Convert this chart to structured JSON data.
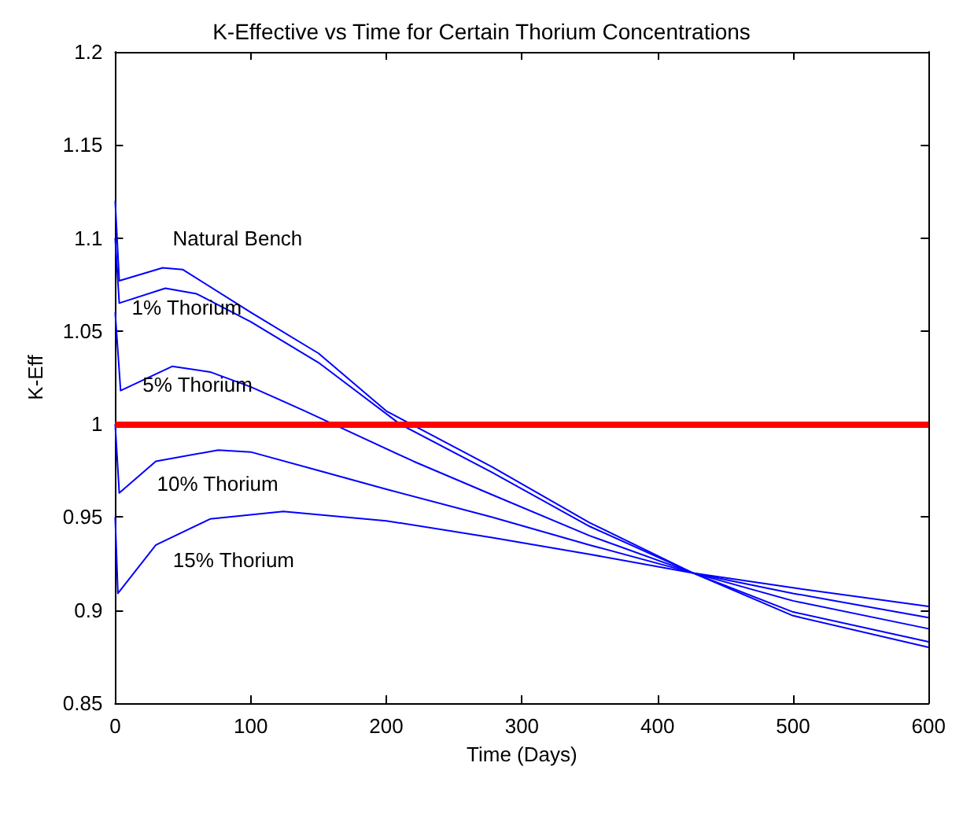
{
  "chart_data": {
    "type": "line",
    "title": "K-Effective vs Time for Certain Thorium Concentrations",
    "xlabel": "Time (Days)",
    "ylabel": "K-Eff",
    "xlim": [
      0,
      600
    ],
    "xticks": [
      0,
      100,
      200,
      300,
      400,
      500,
      600
    ],
    "ylim": [
      0.85,
      1.2
    ],
    "yticks": [
      0.85,
      0.9,
      0.95,
      1,
      1.05,
      1.1,
      1.15,
      1.2
    ],
    "grid": false,
    "legend": false,
    "marker": "none",
    "line_style": "solid",
    "series": [
      {
        "name": "Natural Bench",
        "color": "#0000ff",
        "x": [
          0,
          3,
          35,
          50,
          100,
          150,
          200,
          278,
          350,
          426,
          500,
          600
        ],
        "values": [
          1.12,
          1.077,
          1.084,
          1.083,
          1.06,
          1.038,
          1.007,
          0.977,
          0.947,
          0.92,
          0.897,
          0.88
        ]
      },
      {
        "name": "1% Thorium",
        "color": "#0000ff",
        "x": [
          0,
          3,
          37,
          60,
          100,
          150,
          210,
          278,
          350,
          426,
          500,
          600
        ],
        "values": [
          1.1,
          1.065,
          1.073,
          1.07,
          1.055,
          1.033,
          1.0,
          0.974,
          0.945,
          0.92,
          0.899,
          0.883
        ]
      },
      {
        "name": "5% Thorium",
        "color": "#0000ff",
        "x": [
          0,
          4,
          42,
          70,
          100,
          140,
          220,
          278,
          350,
          426,
          500,
          600
        ],
        "values": [
          1.06,
          1.018,
          1.031,
          1.028,
          1.02,
          1.007,
          0.98,
          0.962,
          0.94,
          0.92,
          0.905,
          0.89
        ]
      },
      {
        "name": "10% Thorium",
        "color": "#0000ff",
        "x": [
          0,
          3,
          30,
          76,
          100,
          150,
          200,
          278,
          350,
          426,
          500,
          600
        ],
        "values": [
          1.0,
          0.963,
          0.98,
          0.986,
          0.985,
          0.975,
          0.965,
          0.95,
          0.935,
          0.92,
          0.909,
          0.896
        ]
      },
      {
        "name": "15% Thorium",
        "color": "#0000ff",
        "x": [
          0,
          2,
          30,
          70,
          124,
          200,
          278,
          350,
          426,
          500,
          600
        ],
        "values": [
          0.95,
          0.909,
          0.935,
          0.949,
          0.953,
          0.948,
          0.939,
          0.93,
          0.92,
          0.912,
          0.902
        ]
      }
    ],
    "ref_lines": [
      {
        "axis": "y",
        "value": 1,
        "color": "#ff0000"
      }
    ]
  }
}
